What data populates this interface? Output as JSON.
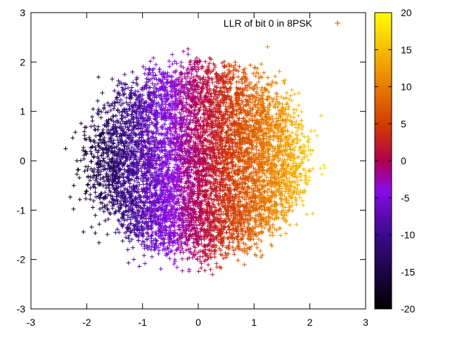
{
  "chart_data": {
    "type": "scatter",
    "title": "",
    "xlabel": "",
    "ylabel": "",
    "xlim": [
      -3,
      3
    ],
    "ylim": [
      -3,
      3
    ],
    "xticks": [
      "-3",
      "-2",
      "-1",
      "0",
      "1",
      "2",
      "3"
    ],
    "yticks": [
      "-3",
      "-2",
      "-1",
      "0",
      "1",
      "2",
      "3"
    ],
    "grid": false,
    "legend_position": "top-right",
    "series": [
      {
        "name": "LLR of bit 0 in 8PSK",
        "marker": "+",
        "legend_marker_color": "#e07010",
        "point_count_estimate": 20000,
        "distribution": "noisy 8PSK constellation, points spread roughly uniformly within a disc of radius ~2.3 centred at the origin",
        "color_by": "LLR value, roughly proportional to x (about 8 per unit of x)"
      }
    ],
    "colorbar": {
      "range": [
        -20,
        20
      ],
      "ticks": [
        "20",
        "15",
        "10",
        "5",
        "0",
        "-5",
        "-10",
        "-15",
        "-20"
      ],
      "palette": "gnuplot (black-purple-red-orange-yellow)",
      "palette_stops": [
        "#000000",
        "#8a0be8",
        "#b5006d",
        "#dd7a00",
        "#ffff00"
      ]
    }
  }
}
